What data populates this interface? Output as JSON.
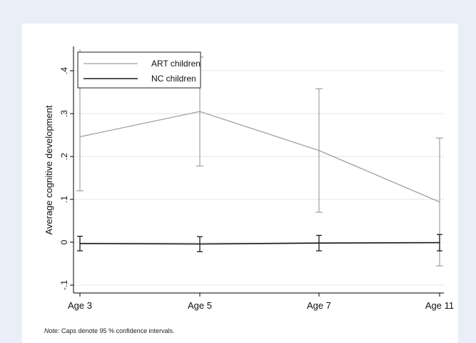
{
  "colors": {
    "page_background": "#e9eef8",
    "panel_background": "#ffffff",
    "art_series": "#a0a0a0",
    "nc_series": "#1a1a1a",
    "grid": "#e6e6e6",
    "axis": "#000000"
  },
  "note": {
    "label": "Note:",
    "text": " Caps denote 95 % confidence intervals."
  },
  "chart_data": {
    "type": "line",
    "ylabel": "Average cognitive development",
    "xlabel": "",
    "categories": [
      "Age 3",
      "Age 5",
      "Age 7",
      "Age 11"
    ],
    "ylim": [
      -0.1,
      0.45
    ],
    "yticks": [
      -0.1,
      0,
      0.1,
      0.2,
      0.3,
      0.4
    ],
    "ytick_labels": [
      "-.1",
      "0",
      ".1",
      ".2",
      ".3",
      ".4"
    ],
    "grid": true,
    "legend_placement": "top-left",
    "error_bars": "95% confidence intervals",
    "series": [
      {
        "name": "ART children",
        "color": "#a0a0a0",
        "values": [
          0.246,
          0.305,
          0.214,
          0.094
        ],
        "ci_lower": [
          0.12,
          0.178,
          0.07,
          -0.055
        ],
        "ci_upper": [
          0.45,
          0.432,
          0.358,
          0.243
        ]
      },
      {
        "name": "NC children",
        "color": "#1a1a1a",
        "values": [
          -0.003,
          -0.004,
          -0.002,
          -0.001
        ],
        "ci_lower": [
          -0.02,
          -0.022,
          -0.02,
          -0.02
        ],
        "ci_upper": [
          0.014,
          0.013,
          0.016,
          0.018
        ]
      }
    ]
  }
}
